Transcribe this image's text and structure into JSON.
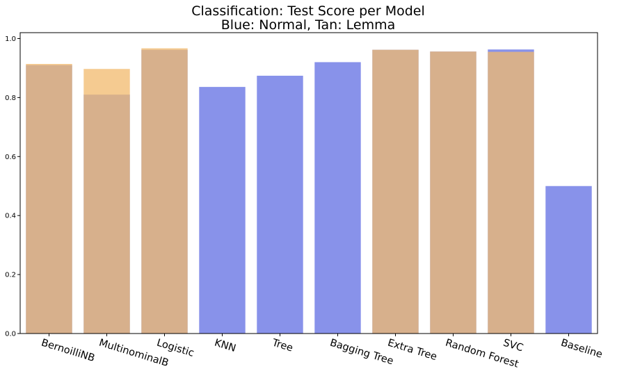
{
  "chart_data": {
    "type": "bar",
    "title_line1": "Classification: Test Score per Model",
    "title_line2": "Blue: Normal, Tan: Lemma",
    "xlabel": "",
    "ylabel": "",
    "ylim": [
      0,
      1.02
    ],
    "yticks": [
      "0.0",
      "0.2",
      "0.4",
      "0.6",
      "0.8",
      "1.0"
    ],
    "grid": false,
    "legend": "none",
    "overlay": true,
    "categories": [
      "BernoilliNB",
      "MultinominalB",
      "Logistic",
      "KNN",
      "Tree",
      "Bagging Tree",
      "Extra Tree",
      "Random Forest",
      "SVC",
      "Baseline"
    ],
    "series": [
      {
        "key": "normal",
        "color": "#8892ea",
        "values": [
          0.91,
          0.81,
          0.962,
          0.836,
          0.874,
          0.92,
          0.962,
          0.956,
          0.963,
          0.5
        ]
      },
      {
        "key": "lemma",
        "color": "#f2ba6c",
        "alpha": 0.75,
        "values": [
          0.914,
          0.897,
          0.967,
          null,
          null,
          null,
          0.962,
          0.956,
          0.955,
          null
        ]
      }
    ]
  }
}
